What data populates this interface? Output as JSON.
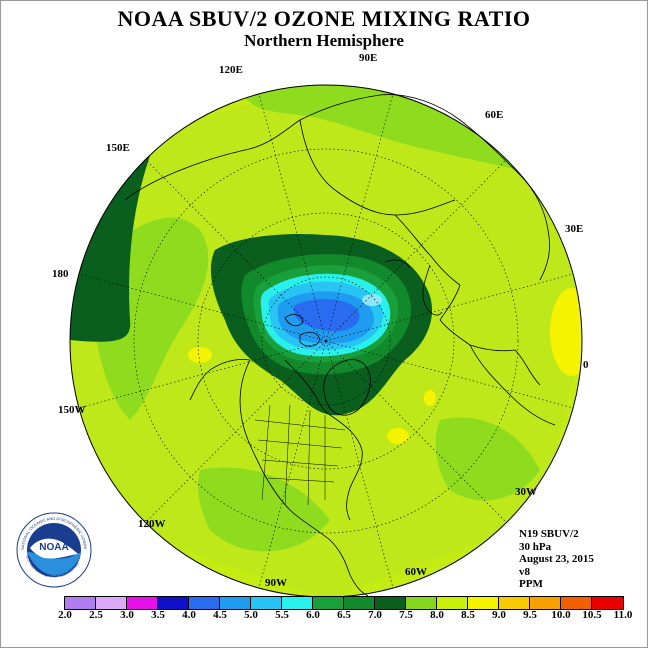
{
  "title": "NOAA SBUV/2 OZONE MIXING RATIO",
  "subtitle": "Northern Hemisphere",
  "longitudes": [
    {
      "label": "90E"
    },
    {
      "label": "120E"
    },
    {
      "label": "60E"
    },
    {
      "label": "150E"
    },
    {
      "label": "30E"
    },
    {
      "label": "180"
    },
    {
      "label": "0"
    },
    {
      "label": "150W"
    },
    {
      "label": "30W"
    },
    {
      "label": "120W"
    },
    {
      "label": "60W"
    },
    {
      "label": "90W"
    }
  ],
  "info": {
    "instrument": "N19 SBUV/2",
    "level": "30 hPa",
    "date": "August 23, 2015",
    "version": "v8",
    "units": "PPM"
  },
  "colorbar": {
    "ticks": [
      "2.0",
      "2.5",
      "3.0",
      "3.5",
      "4.0",
      "4.5",
      "5.0",
      "5.5",
      "6.0",
      "6.5",
      "7.0",
      "7.5",
      "8.0",
      "8.5",
      "9.0",
      "9.5",
      "10.0",
      "10.5",
      "11.0"
    ],
    "colors": [
      "#b07cf0",
      "#dca8f8",
      "#e810e8",
      "#1010c8",
      "#2a6cf0",
      "#1e9cf0",
      "#28c4f4",
      "#2af0ec",
      "#1aa03a",
      "#128a2c",
      "#0b5f1e",
      "#86d81e",
      "#c8f00a",
      "#f4f400",
      "#f8c800",
      "#f8a000",
      "#f06000",
      "#e80000",
      "#8a5028"
    ]
  },
  "logo": {
    "text": "NOAA",
    "ring_top": "NATIONAL OCEANIC AND ATMOSPHERIC ADMINISTRATION",
    "ring_bottom": "U.S. DEPARTMENT OF COMMERCE"
  }
}
